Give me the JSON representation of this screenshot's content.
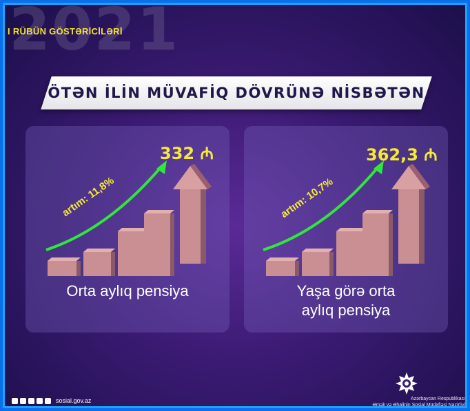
{
  "header": {
    "year": "2021",
    "quarter": "I RÜBÜN GÖSTƏRİCİLƏRİ",
    "banner": "ÖTƏN İLİN MÜVAFİQ DÖVRÜNƏ NİSBƏTƏN"
  },
  "cards": [
    {
      "value": "332 ₼",
      "growth": "artım: 11,8%",
      "label_lines": [
        "Orta aylıq pensiya"
      ]
    },
    {
      "value": "362,3 ₼",
      "growth": "artım: 10,7%",
      "label_lines": [
        "Yaşa görə orta",
        "aylıq pensiya"
      ]
    }
  ],
  "footer": {
    "site": "sosial.gov.az",
    "ministry_line1": "Azərbaycan Respublikası",
    "ministry_line2": "Əmək və Əhalinin Sosial Müdafiəsi Nazirliyi",
    "social_icons": [
      "facebook-icon",
      "instagram-icon",
      "twitter-icon",
      "telegram-icon",
      "youtube-icon"
    ]
  },
  "colors": {
    "accent_yellow": "#f6ea35",
    "arrow_green": "#2ee83a",
    "bar_pink": "#c98f92",
    "frame_blue": "#1aa3ff"
  }
}
